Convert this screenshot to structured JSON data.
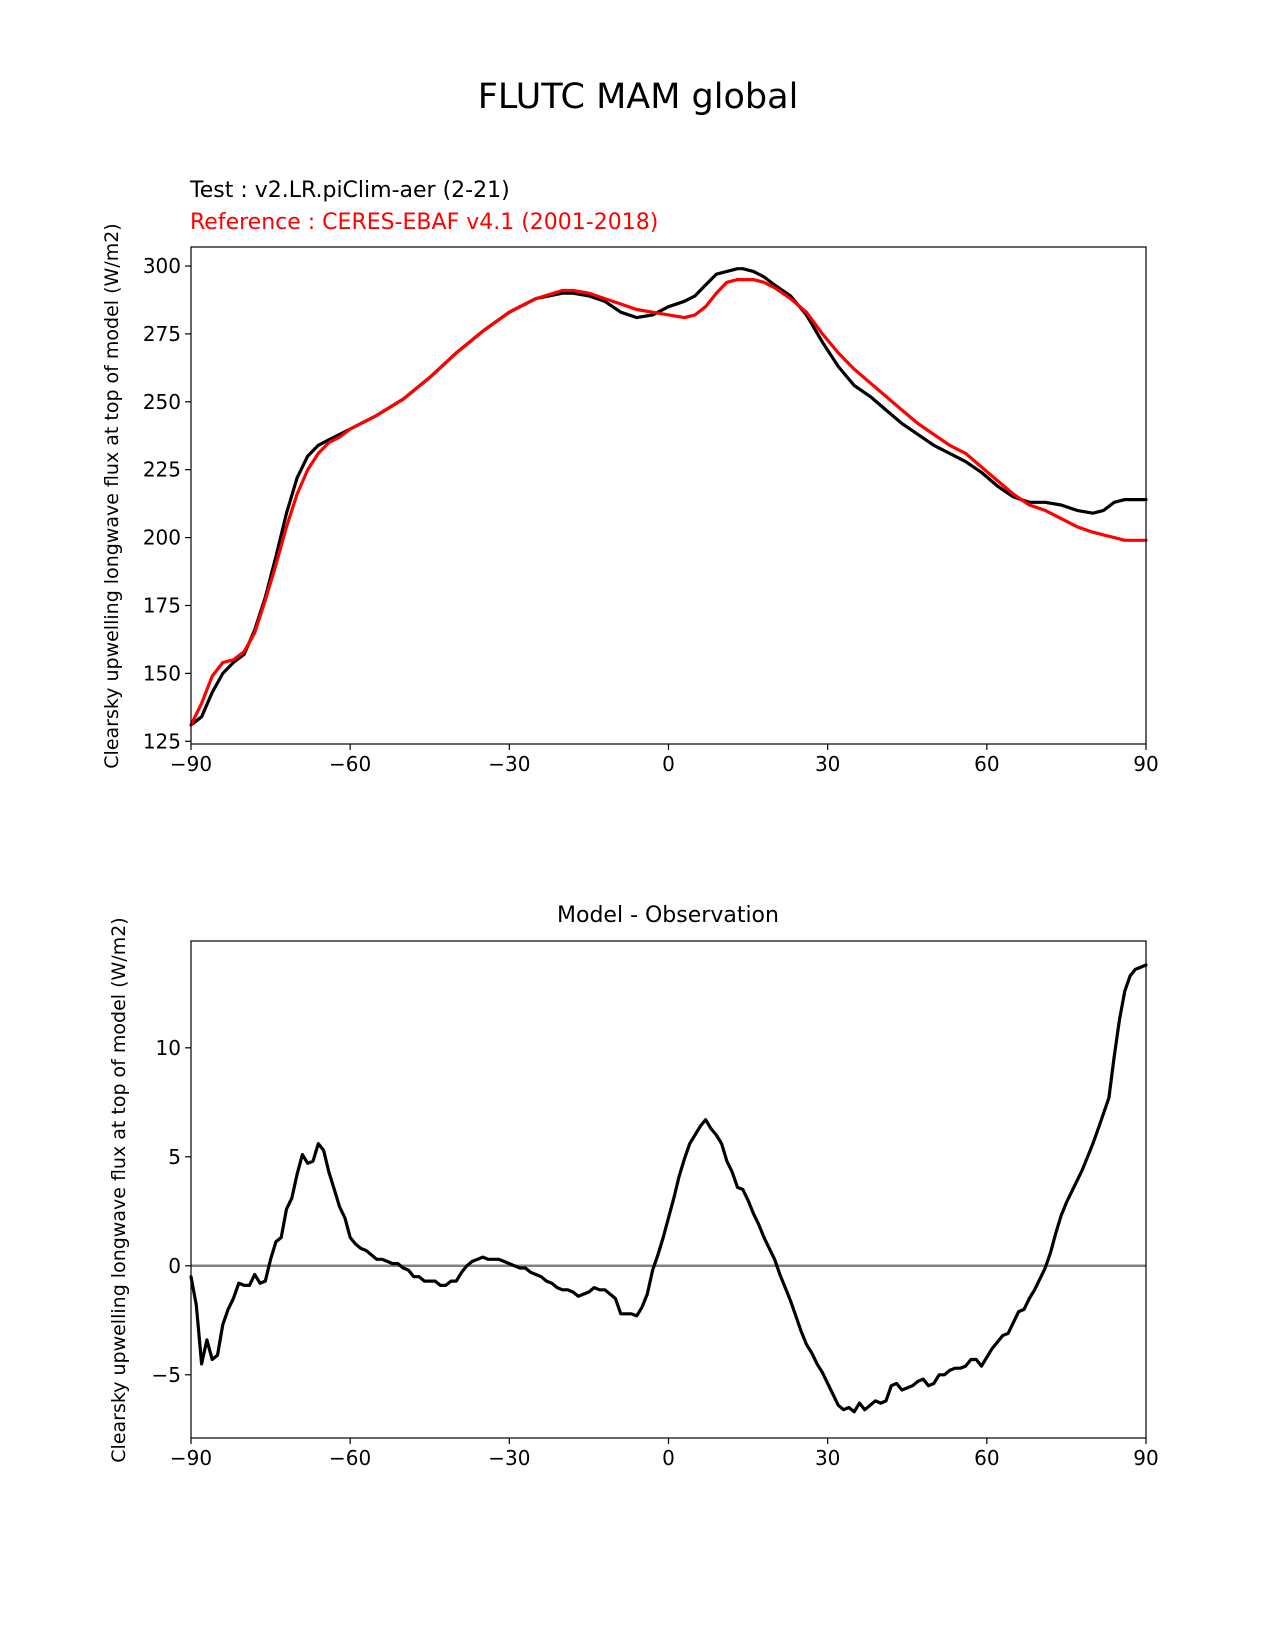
{
  "figure": {
    "title": "FLUTC MAM global"
  },
  "chart_data": [
    {
      "type": "line",
      "title": "",
      "test_label": "Test : v2.LR.piClim-aer (2-21)",
      "reference_label": "Reference : CERES-EBAF v4.1 (2001-2018)",
      "xlabel": "",
      "ylabel": "Clearsky upwelling longwave flux at top of model (W/m2)",
      "xlim": [
        -90,
        90
      ],
      "ylim": [
        124,
        307
      ],
      "xticks": [
        -90,
        -60,
        -30,
        0,
        30,
        60,
        90
      ],
      "xtick_labels": [
        "−90",
        "−60",
        "−30",
        "0",
        "30",
        "60",
        "90"
      ],
      "yticks": [
        125,
        150,
        175,
        200,
        225,
        250,
        275,
        300
      ],
      "ytick_labels": [
        "125",
        "150",
        "175",
        "200",
        "225",
        "250",
        "275",
        "300"
      ],
      "x": [
        -90,
        -88,
        -86,
        -84,
        -82,
        -80,
        -78,
        -76,
        -74,
        -72,
        -70,
        -68,
        -66,
        -64,
        -62,
        -60,
        -55,
        -50,
        -45,
        -40,
        -35,
        -30,
        -25,
        -20,
        -18,
        -15,
        -12,
        -9,
        -6,
        -3,
        0,
        3,
        5,
        7,
        9,
        11,
        13,
        14,
        16,
        18,
        20,
        23,
        26,
        29,
        32,
        35,
        38,
        41,
        44,
        47,
        50,
        53,
        56,
        59,
        62,
        65,
        68,
        71,
        74,
        77,
        80,
        82,
        84,
        86,
        88,
        90
      ],
      "series": [
        {
          "name": "Test",
          "color": "#000000",
          "values": [
            131,
            134,
            143,
            150,
            154,
            157,
            166,
            178,
            193,
            209,
            222,
            230,
            234,
            236,
            238,
            240,
            245,
            251,
            259,
            268,
            276,
            283,
            288,
            290,
            290,
            289,
            287,
            283,
            281,
            282,
            285,
            287,
            289,
            293,
            297,
            298,
            299,
            299,
            298,
            296,
            293,
            289,
            282,
            272,
            263,
            256,
            252,
            247,
            242,
            238,
            234,
            231,
            228,
            224,
            219,
            215,
            213,
            213,
            212,
            210,
            209,
            210,
            213,
            214,
            214,
            214
          ]
        },
        {
          "name": "Reference",
          "color": "#ff0000",
          "values": [
            131,
            139,
            149,
            154,
            155,
            158,
            165,
            177,
            190,
            204,
            216,
            225,
            231,
            235,
            237,
            240,
            245,
            251,
            259,
            268,
            276,
            283,
            288,
            291,
            291,
            290,
            288,
            286,
            284,
            283,
            282,
            281,
            282,
            285,
            290,
            294,
            295,
            295,
            295,
            294,
            292,
            288,
            283,
            275,
            268,
            262,
            257,
            252,
            247,
            242,
            238,
            234,
            231,
            226,
            221,
            216,
            212,
            210,
            207,
            204,
            202,
            201,
            200,
            199,
            199,
            199
          ]
        }
      ]
    },
    {
      "type": "line",
      "title": "Model - Observation",
      "xlabel": "",
      "ylabel": "Clearsky upwelling longwave flux at top of model (W/m2)",
      "xlim": [
        -90,
        90
      ],
      "ylim": [
        -7.9,
        14.9
      ],
      "xticks": [
        -90,
        -60,
        -30,
        0,
        30,
        60,
        90
      ],
      "xtick_labels": [
        "−90",
        "−60",
        "−30",
        "0",
        "30",
        "60",
        "90"
      ],
      "yticks": [
        -5,
        0,
        5,
        10
      ],
      "ytick_labels": [
        "−5",
        "0",
        "5",
        "10"
      ],
      "zero_line_color": "#808080",
      "x": [
        -90,
        -89,
        -88,
        -87,
        -86,
        -85,
        -84,
        -83,
        -82,
        -81,
        -80,
        -79,
        -78,
        -77,
        -76,
        -75,
        -74,
        -73,
        -72,
        -71,
        -70,
        -69,
        -68,
        -67,
        -66,
        -65,
        -64,
        -63,
        -62,
        -61,
        -60,
        -59,
        -58,
        -57,
        -56,
        -55,
        -54,
        -53,
        -52,
        -51,
        -50,
        -49,
        -48,
        -47,
        -46,
        -45,
        -44,
        -43,
        -42,
        -41,
        -40,
        -39,
        -38,
        -37,
        -36,
        -35,
        -34,
        -33,
        -32,
        -31,
        -30,
        -29,
        -28,
        -27,
        -26,
        -25,
        -24,
        -23,
        -22,
        -21,
        -20,
        -19,
        -18,
        -17,
        -16,
        -15,
        -14,
        -13,
        -12,
        -11,
        -10,
        -9,
        -8,
        -7,
        -6,
        -5,
        -4,
        -3,
        -2,
        -1,
        0,
        1,
        2,
        3,
        4,
        5,
        6,
        7,
        8,
        9,
        10,
        11,
        12,
        13,
        14,
        15,
        16,
        17,
        18,
        19,
        20,
        21,
        22,
        23,
        24,
        25,
        26,
        27,
        28,
        29,
        30,
        31,
        32,
        33,
        34,
        35,
        36,
        37,
        38,
        39,
        40,
        41,
        42,
        43,
        44,
        45,
        46,
        47,
        48,
        49,
        50,
        51,
        52,
        53,
        54,
        55,
        56,
        57,
        58,
        59,
        60,
        61,
        62,
        63,
        64,
        65,
        66,
        67,
        68,
        69,
        70,
        71,
        72,
        73,
        74,
        75,
        76,
        77,
        78,
        79,
        80,
        81,
        82,
        83,
        84,
        85,
        86,
        87,
        88,
        89,
        90
      ],
      "series": [
        {
          "name": "Model - Observation",
          "color": "#000000",
          "values": [
            -0.5,
            -1.8,
            -4.5,
            -3.4,
            -4.3,
            -4.1,
            -2.7,
            -2.0,
            -1.5,
            -0.8,
            -0.9,
            -0.9,
            -0.4,
            -0.8,
            -0.7,
            0.3,
            1.1,
            1.3,
            2.6,
            3.1,
            4.2,
            5.1,
            4.7,
            4.8,
            5.6,
            5.3,
            4.3,
            3.5,
            2.7,
            2.2,
            1.3,
            1.0,
            0.8,
            0.7,
            0.5,
            0.3,
            0.3,
            0.2,
            0.1,
            0.1,
            -0.1,
            -0.2,
            -0.5,
            -0.5,
            -0.7,
            -0.7,
            -0.7,
            -0.9,
            -0.9,
            -0.7,
            -0.7,
            -0.3,
            0.0,
            0.2,
            0.3,
            0.4,
            0.3,
            0.3,
            0.3,
            0.2,
            0.1,
            0.0,
            -0.1,
            -0.1,
            -0.3,
            -0.4,
            -0.5,
            -0.7,
            -0.8,
            -1.0,
            -1.1,
            -1.1,
            -1.2,
            -1.4,
            -1.3,
            -1.2,
            -1.0,
            -1.1,
            -1.1,
            -1.3,
            -1.5,
            -2.2,
            -2.2,
            -2.2,
            -2.3,
            -1.9,
            -1.3,
            -0.2,
            0.5,
            1.3,
            2.2,
            3.1,
            4.1,
            4.9,
            5.6,
            6.0,
            6.4,
            6.7,
            6.3,
            6.0,
            5.6,
            4.8,
            4.3,
            3.6,
            3.5,
            3.0,
            2.4,
            1.9,
            1.3,
            0.8,
            0.3,
            -0.4,
            -1.0,
            -1.6,
            -2.3,
            -3.0,
            -3.6,
            -4.0,
            -4.5,
            -4.9,
            -5.4,
            -5.9,
            -6.4,
            -6.6,
            -6.5,
            -6.7,
            -6.3,
            -6.6,
            -6.4,
            -6.2,
            -6.3,
            -6.2,
            -5.5,
            -5.4,
            -5.7,
            -5.6,
            -5.5,
            -5.3,
            -5.2,
            -5.5,
            -5.4,
            -5.0,
            -5.0,
            -4.8,
            -4.7,
            -4.7,
            -4.6,
            -4.3,
            -4.3,
            -4.6,
            -4.2,
            -3.8,
            -3.5,
            -3.2,
            -3.1,
            -2.6,
            -2.1,
            -2.0,
            -1.5,
            -1.1,
            -0.6,
            -0.1,
            0.6,
            1.5,
            2.3,
            2.9,
            3.4,
            3.9,
            4.4,
            5.0,
            5.6,
            6.3,
            7.0,
            7.7,
            9.6,
            11.3,
            12.6,
            13.3,
            13.6,
            13.7,
            13.8
          ]
        }
      ]
    }
  ]
}
